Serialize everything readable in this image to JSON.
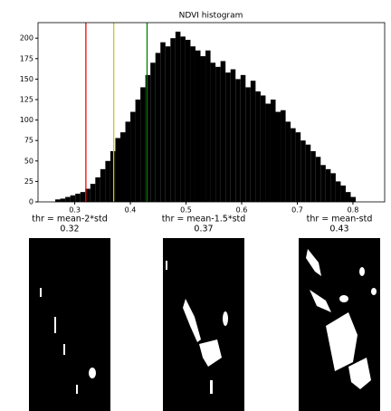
{
  "chart_data": {
    "type": "histogram",
    "title": "NDVI histogram",
    "bins": [
      0.265,
      0.274,
      0.283,
      0.292,
      0.301,
      0.31,
      0.319,
      0.328,
      0.337,
      0.346,
      0.355,
      0.364,
      0.373,
      0.382,
      0.391,
      0.4,
      0.409,
      0.418,
      0.427,
      0.436,
      0.445,
      0.454,
      0.463,
      0.472,
      0.481,
      0.49,
      0.499,
      0.508,
      0.517,
      0.526,
      0.535,
      0.544,
      0.553,
      0.562,
      0.571,
      0.58,
      0.589,
      0.598,
      0.607,
      0.616,
      0.625,
      0.634,
      0.643,
      0.652,
      0.661,
      0.67,
      0.679,
      0.688,
      0.697,
      0.706,
      0.715,
      0.724,
      0.733,
      0.742,
      0.751,
      0.76,
      0.769,
      0.778,
      0.787,
      0.796,
      0.805
    ],
    "values": [
      3,
      4,
      6,
      8,
      10,
      12,
      16,
      22,
      30,
      40,
      50,
      62,
      78,
      85,
      98,
      110,
      125,
      140,
      155,
      170,
      182,
      195,
      190,
      200,
      208,
      202,
      198,
      190,
      185,
      178,
      185,
      170,
      165,
      172,
      158,
      162,
      150,
      155,
      140,
      148,
      135,
      130,
      120,
      125,
      110,
      112,
      98,
      90,
      85,
      75,
      70,
      62,
      55,
      45,
      40,
      35,
      25,
      20,
      12,
      6
    ],
    "color": "#000000",
    "xlim": [
      0.234,
      0.857
    ],
    "xticks": [
      0.3,
      0.4,
      0.5,
      0.6,
      0.7,
      0.8
    ],
    "ylim": [
      0,
      219
    ],
    "yticks": [
      0,
      25,
      50,
      75,
      100,
      125,
      150,
      175,
      200
    ],
    "thresholds": [
      {
        "label": "thr = mean-2*std",
        "value": 0.32,
        "color": "#ff0000"
      },
      {
        "label": "thr = mean-1.5*std",
        "value": 0.37,
        "color": "#cccc00"
      },
      {
        "label": "thr = mean-std",
        "value": 0.43,
        "color": "#008000"
      }
    ]
  }
}
